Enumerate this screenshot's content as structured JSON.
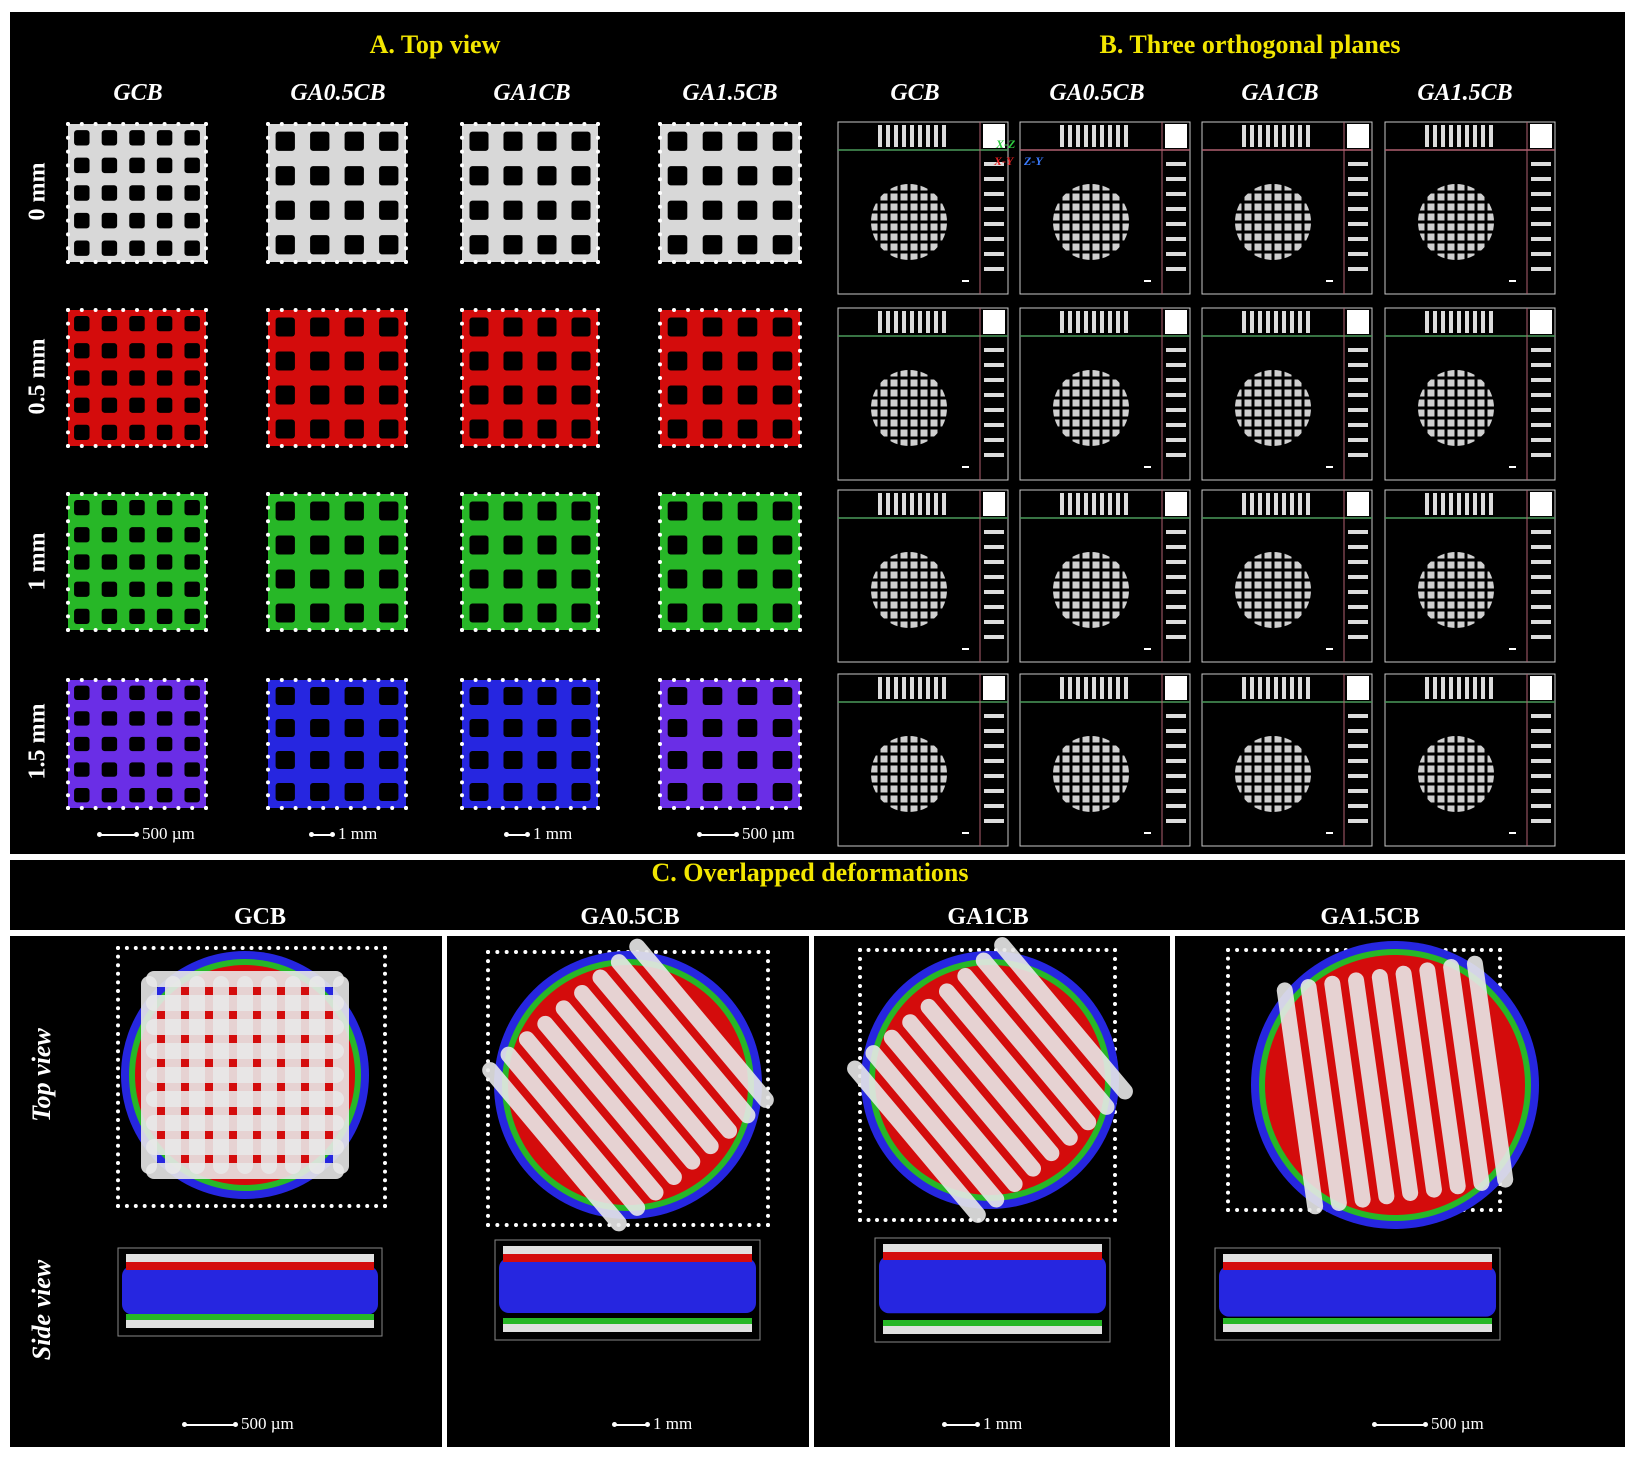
{
  "panelA": {
    "title": "A. Top view",
    "columns": [
      "GCB",
      "GA0.5CB",
      "GA1CB",
      "GA1.5CB"
    ],
    "rows": [
      "0 mm",
      "0.5 mm",
      "1 mm",
      "1.5 mm"
    ],
    "scalebars": [
      "500 µm",
      "1 mm",
      "1 mm",
      "500 µm"
    ]
  },
  "panelB": {
    "title": "B. Three orthogonal planes",
    "columns": [
      "GCB",
      "GA0.5CB",
      "GA1CB",
      "GA1.5CB"
    ],
    "plane_labels": {
      "xz": "X-Z",
      "xy": "X-Y",
      "zy": "Z-Y"
    }
  },
  "panelC": {
    "title": "C. Overlapped deformations",
    "columns": [
      "GCB",
      "GA0.5CB",
      "GA1CB",
      "GA1.5CB"
    ],
    "row_labels": [
      "Top view",
      "Side view"
    ],
    "scalebars": [
      "500 µm",
      "1 mm",
      "1 mm",
      "500 µm"
    ]
  },
  "colors": {
    "row_0mm": "#d8d8d8",
    "row_05mm": "#d40c0c",
    "row_1mm": "#27b727",
    "row_15mm": "#2626e0",
    "row_15mm_alt": "#6a2ee6",
    "title_yellow": "#f2e600"
  }
}
